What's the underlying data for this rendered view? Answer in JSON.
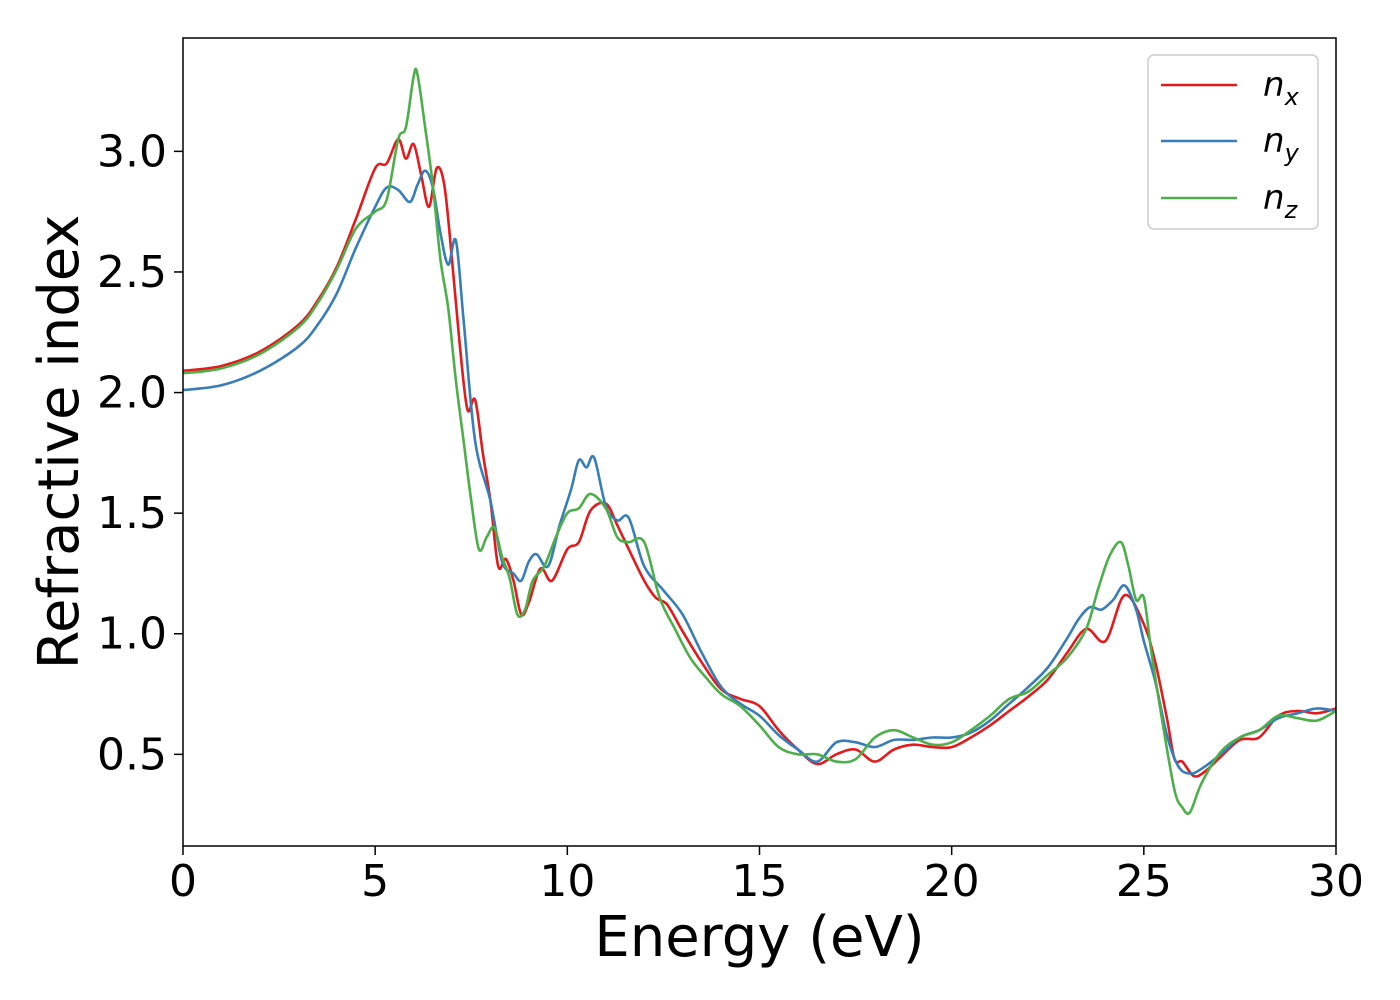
{
  "chart_data": {
    "type": "line",
    "title": "",
    "xlabel": "Energy (eV)",
    "ylabel": "Refractive index",
    "xlim": [
      0,
      30
    ],
    "ylim": [
      0.12,
      3.47
    ],
    "xticks": [
      0,
      5,
      10,
      15,
      20,
      25,
      30
    ],
    "yticks": [
      0.5,
      1.0,
      1.5,
      2.0,
      2.5,
      3.0
    ],
    "xtick_labels": [
      "0",
      "5",
      "10",
      "15",
      "20",
      "25",
      "30"
    ],
    "ytick_labels": [
      "0.5",
      "1.0",
      "1.5",
      "2.0",
      "2.5",
      "3.0"
    ],
    "grid": false,
    "legend_position": "top-right",
    "series": [
      {
        "name": "n",
        "subscript": "x",
        "color": "#e41a1c",
        "x": [
          0,
          1,
          2,
          3,
          3.5,
          4,
          4.5,
          5,
          5.3,
          5.6,
          5.8,
          6.0,
          6.2,
          6.4,
          6.6,
          6.8,
          7.0,
          7.2,
          7.4,
          7.6,
          7.8,
          8.0,
          8.2,
          8.4,
          8.6,
          8.8,
          9.0,
          9.3,
          9.6,
          10.0,
          10.3,
          10.6,
          11.0,
          11.3,
          11.6,
          12.0,
          12.3,
          12.6,
          13.0,
          13.5,
          14.0,
          14.5,
          15.0,
          15.5,
          16.0,
          16.5,
          17.0,
          17.5,
          18.0,
          18.5,
          19.0,
          19.5,
          20.0,
          20.5,
          21.0,
          21.5,
          22.0,
          22.5,
          23.0,
          23.5,
          24.0,
          24.5,
          25.0,
          25.3,
          25.6,
          25.8,
          26.0,
          26.3,
          26.6,
          27.0,
          27.5,
          28.0,
          28.5,
          29.0,
          29.5,
          30.0
        ],
        "y": [
          2.09,
          2.11,
          2.17,
          2.28,
          2.38,
          2.52,
          2.72,
          2.93,
          2.95,
          3.05,
          2.97,
          3.03,
          2.9,
          2.77,
          2.93,
          2.86,
          2.55,
          2.2,
          1.93,
          1.97,
          1.75,
          1.55,
          1.28,
          1.31,
          1.22,
          1.08,
          1.13,
          1.27,
          1.22,
          1.35,
          1.38,
          1.51,
          1.54,
          1.45,
          1.35,
          1.22,
          1.15,
          1.12,
          1.01,
          0.88,
          0.77,
          0.73,
          0.7,
          0.6,
          0.52,
          0.46,
          0.5,
          0.52,
          0.47,
          0.52,
          0.54,
          0.53,
          0.53,
          0.57,
          0.62,
          0.68,
          0.74,
          0.81,
          0.92,
          1.02,
          0.97,
          1.16,
          1.04,
          0.88,
          0.65,
          0.48,
          0.47,
          0.41,
          0.43,
          0.49,
          0.56,
          0.57,
          0.66,
          0.68,
          0.67,
          0.69
        ]
      },
      {
        "name": "n",
        "subscript": "y",
        "color": "#377eb8",
        "x": [
          0,
          1,
          2,
          3,
          3.5,
          4,
          4.5,
          5,
          5.3,
          5.6,
          5.9,
          6.1,
          6.3,
          6.5,
          6.7,
          6.9,
          7.1,
          7.3,
          7.6,
          8.0,
          8.3,
          8.6,
          8.8,
          9.0,
          9.2,
          9.5,
          9.8,
          10.1,
          10.3,
          10.5,
          10.7,
          11.0,
          11.3,
          11.6,
          12.0,
          12.5,
          13.0,
          13.5,
          14.0,
          14.5,
          15.0,
          15.5,
          16.0,
          16.5,
          17.0,
          17.5,
          18.0,
          18.5,
          19.0,
          19.5,
          20.0,
          20.5,
          21.0,
          21.5,
          22.0,
          22.5,
          23.0,
          23.3,
          23.6,
          23.9,
          24.2,
          24.5,
          24.8,
          25.0,
          25.3,
          25.6,
          25.9,
          26.2,
          26.5,
          27.0,
          27.5,
          28.0,
          28.5,
          29.0,
          29.5,
          30.0
        ],
        "y": [
          2.01,
          2.03,
          2.09,
          2.19,
          2.28,
          2.41,
          2.6,
          2.77,
          2.85,
          2.84,
          2.79,
          2.86,
          2.92,
          2.85,
          2.66,
          2.53,
          2.63,
          2.3,
          1.8,
          1.55,
          1.3,
          1.25,
          1.22,
          1.3,
          1.33,
          1.28,
          1.45,
          1.6,
          1.72,
          1.69,
          1.73,
          1.53,
          1.47,
          1.48,
          1.28,
          1.18,
          1.08,
          0.92,
          0.78,
          0.71,
          0.66,
          0.58,
          0.52,
          0.47,
          0.55,
          0.55,
          0.53,
          0.56,
          0.56,
          0.57,
          0.57,
          0.59,
          0.64,
          0.71,
          0.78,
          0.86,
          0.98,
          1.06,
          1.11,
          1.1,
          1.14,
          1.2,
          1.1,
          0.97,
          0.8,
          0.58,
          0.45,
          0.42,
          0.44,
          0.5,
          0.57,
          0.6,
          0.65,
          0.67,
          0.69,
          0.68
        ]
      },
      {
        "name": "n",
        "subscript": "z",
        "color": "#4daf4a",
        "x": [
          0,
          1,
          2,
          3,
          3.5,
          4,
          4.5,
          5,
          5.3,
          5.6,
          5.8,
          6.0,
          6.1,
          6.3,
          6.5,
          6.7,
          6.9,
          7.1,
          7.3,
          7.5,
          7.7,
          7.9,
          8.1,
          8.3,
          8.5,
          8.7,
          8.9,
          9.1,
          9.4,
          9.7,
          10.0,
          10.3,
          10.6,
          11.0,
          11.3,
          11.6,
          12.0,
          12.4,
          12.8,
          13.2,
          13.6,
          14.0,
          14.5,
          15.0,
          15.5,
          16.0,
          16.5,
          17.0,
          17.5,
          18.0,
          18.5,
          19.0,
          19.5,
          20.0,
          20.5,
          21.0,
          21.5,
          22.0,
          22.5,
          23.0,
          23.5,
          23.8,
          24.1,
          24.4,
          24.6,
          24.8,
          25.0,
          25.2,
          25.5,
          25.8,
          26.0,
          26.2,
          26.5,
          27.0,
          27.5,
          28.0,
          28.5,
          29.0,
          29.5,
          30.0
        ],
        "y": [
          2.08,
          2.1,
          2.16,
          2.27,
          2.37,
          2.51,
          2.68,
          2.75,
          2.8,
          3.05,
          3.1,
          3.31,
          3.32,
          3.1,
          2.86,
          2.55,
          2.35,
          2.05,
          1.8,
          1.55,
          1.35,
          1.4,
          1.44,
          1.32,
          1.23,
          1.08,
          1.1,
          1.22,
          1.28,
          1.4,
          1.5,
          1.52,
          1.58,
          1.52,
          1.4,
          1.38,
          1.38,
          1.15,
          1.02,
          0.9,
          0.82,
          0.75,
          0.7,
          0.62,
          0.53,
          0.5,
          0.5,
          0.47,
          0.48,
          0.57,
          0.6,
          0.57,
          0.54,
          0.55,
          0.6,
          0.66,
          0.73,
          0.76,
          0.83,
          0.9,
          1.02,
          1.18,
          1.32,
          1.38,
          1.28,
          1.14,
          1.15,
          0.92,
          0.62,
          0.35,
          0.28,
          0.26,
          0.38,
          0.51,
          0.57,
          0.6,
          0.66,
          0.65,
          0.64,
          0.68
        ]
      }
    ]
  }
}
